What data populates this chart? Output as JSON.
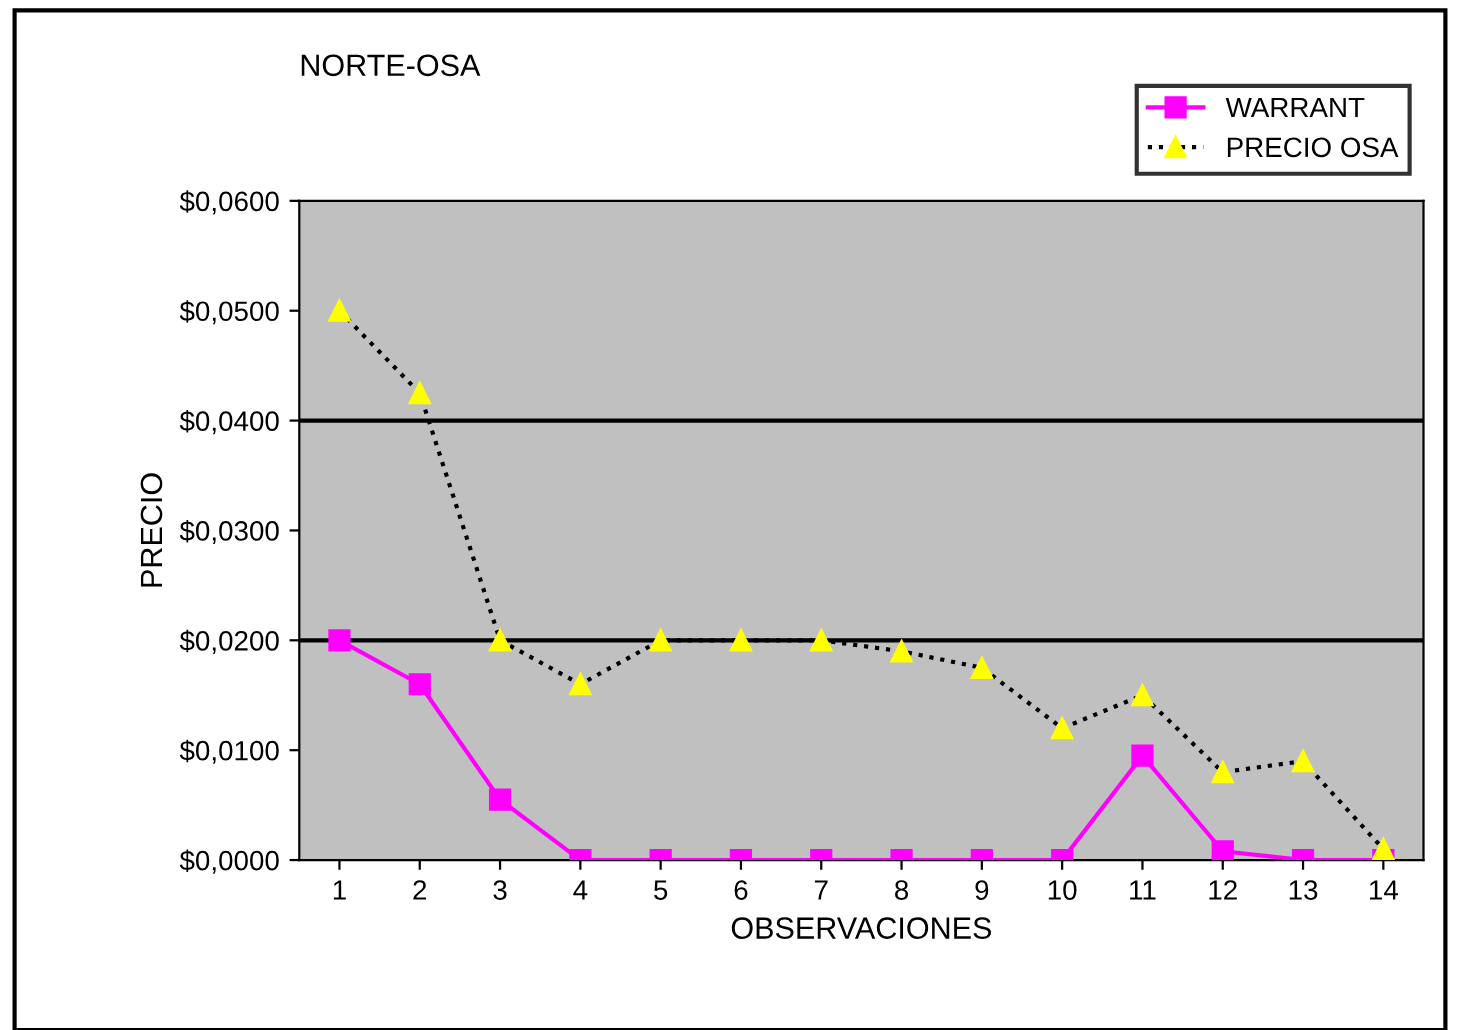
{
  "chart_data": {
    "type": "line",
    "title": "NORTE-OSA",
    "xlabel": "OBSERVACIONES",
    "ylabel": "PRECIO",
    "categories": [
      "1",
      "2",
      "3",
      "4",
      "5",
      "6",
      "7",
      "8",
      "9",
      "10",
      "11",
      "12",
      "13",
      "14"
    ],
    "series": [
      {
        "name": "WARRANT",
        "color": "#ff00ff",
        "marker": "square",
        "line_style": "solid",
        "values": [
          0.02,
          0.016,
          0.0055,
          0,
          0,
          0,
          0,
          0,
          0,
          0,
          0.0095,
          0.0008,
          0,
          0
        ]
      },
      {
        "name": "PRECIO OSA",
        "color": "#ffff00",
        "marker": "triangle",
        "line_style": "dotted",
        "values": [
          0.05,
          0.0425,
          0.02,
          0.016,
          0.02,
          0.02,
          0.02,
          0.019,
          0.0175,
          0.012,
          0.015,
          0.008,
          0.009,
          0.001
        ]
      }
    ],
    "ylim": [
      0,
      0.06
    ],
    "yticks": [
      {
        "value": 0,
        "label": "$0,0000"
      },
      {
        "value": 0.01,
        "label": "$0,0100"
      },
      {
        "value": 0.02,
        "label": "$0,0200"
      },
      {
        "value": 0.03,
        "label": "$0,0300"
      },
      {
        "value": 0.04,
        "label": "$0,0400"
      },
      {
        "value": 0.05,
        "label": "$0,0500"
      },
      {
        "value": 0.06,
        "label": "$0,0600"
      }
    ],
    "ref_lines": [
      {
        "axis": "y",
        "value": 0.02,
        "color": "#000000"
      },
      {
        "axis": "y",
        "value": 0.04,
        "color": "#000000"
      }
    ],
    "legend": "top right",
    "grid": false
  }
}
